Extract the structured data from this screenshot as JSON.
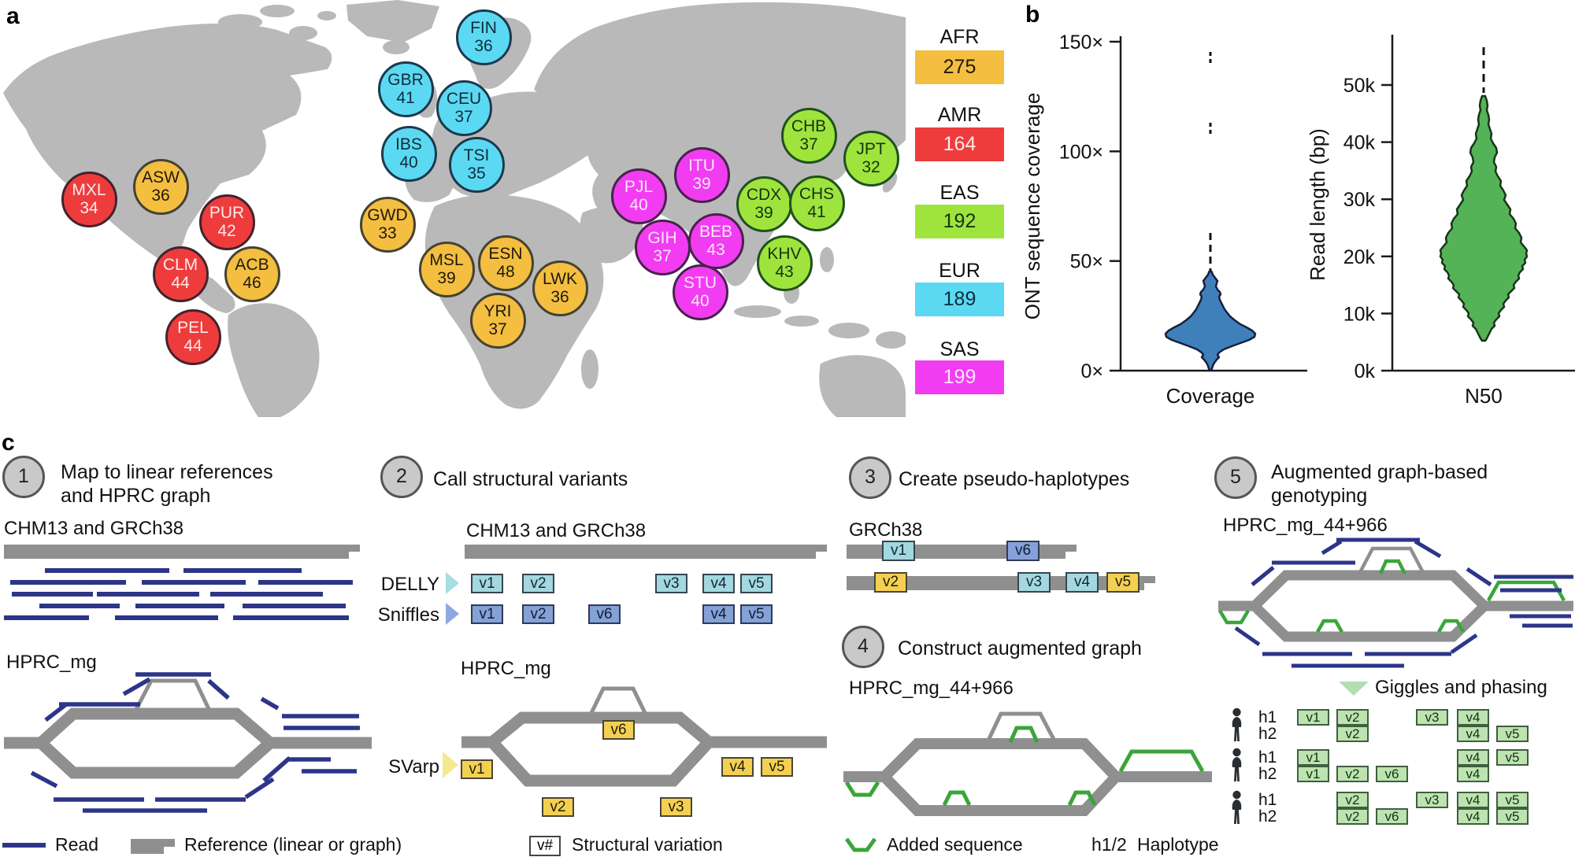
{
  "figure": {
    "panel_a": "a",
    "panel_b": "b",
    "panel_c": "c"
  },
  "map": {
    "land_color": "#b9b9b9",
    "groups": {
      "AFR": {
        "fill": "#f4be41",
        "border": "#454233",
        "text": "#1f1a0a"
      },
      "AMR": {
        "fill": "#ee3c3c",
        "border": "#42232e",
        "text": "#fdeaea"
      },
      "EAS": {
        "fill": "#9fe43d",
        "border": "#20501f",
        "text": "#153410"
      },
      "EUR": {
        "fill": "#5cd9f2",
        "border": "#1c394e",
        "text": "#0f2c3c"
      },
      "SAS": {
        "fill": "#f23cf2",
        "border": "#47224d",
        "text": "#fbe6fb"
      }
    },
    "populations": [
      {
        "code": "MXL",
        "count": 34,
        "group": "AMR"
      },
      {
        "code": "ASW",
        "count": 36,
        "group": "AFR"
      },
      {
        "code": "PUR",
        "count": 42,
        "group": "AMR"
      },
      {
        "code": "CLM",
        "count": 44,
        "group": "AMR"
      },
      {
        "code": "ACB",
        "count": 46,
        "group": "AFR"
      },
      {
        "code": "PEL",
        "count": 44,
        "group": "AMR"
      },
      {
        "code": "FIN",
        "count": 36,
        "group": "EUR"
      },
      {
        "code": "GBR",
        "count": 41,
        "group": "EUR"
      },
      {
        "code": "CEU",
        "count": 37,
        "group": "EUR"
      },
      {
        "code": "IBS",
        "count": 40,
        "group": "EUR"
      },
      {
        "code": "TSI",
        "count": 35,
        "group": "EUR"
      },
      {
        "code": "GWD",
        "count": 33,
        "group": "AFR"
      },
      {
        "code": "MSL",
        "count": 39,
        "group": "AFR"
      },
      {
        "code": "ESN",
        "count": 48,
        "group": "AFR"
      },
      {
        "code": "LWK",
        "count": 36,
        "group": "AFR"
      },
      {
        "code": "YRI",
        "count": 37,
        "group": "AFR"
      },
      {
        "code": "PJL",
        "count": 40,
        "group": "SAS"
      },
      {
        "code": "ITU",
        "count": 39,
        "group": "SAS"
      },
      {
        "code": "GIH",
        "count": 37,
        "group": "SAS"
      },
      {
        "code": "BEB",
        "count": 43,
        "group": "SAS"
      },
      {
        "code": "STU",
        "count": 40,
        "group": "SAS"
      },
      {
        "code": "CDX",
        "count": 39,
        "group": "EAS"
      },
      {
        "code": "CHS",
        "count": 41,
        "group": "EAS"
      },
      {
        "code": "CHB",
        "count": 37,
        "group": "EAS"
      },
      {
        "code": "JPT",
        "count": 32,
        "group": "EAS"
      },
      {
        "code": "KHV",
        "count": 43,
        "group": "EAS"
      }
    ],
    "legend": [
      {
        "group": "AFR",
        "count": "275"
      },
      {
        "group": "AMR",
        "count": "164"
      },
      {
        "group": "EAS",
        "count": "192"
      },
      {
        "group": "EUR",
        "count": "189"
      },
      {
        "group": "SAS",
        "count": "199"
      }
    ]
  },
  "chart_data": [
    {
      "type": "violin",
      "panel": "b-left",
      "xlabel": "Coverage",
      "ylabel": "ONT sequence coverage",
      "ylim": [
        0,
        155
      ],
      "grid": false,
      "fill_color": "#3f7fba",
      "stroke_color": "#15203c",
      "yticks": [
        {
          "value": 0,
          "label": "0×"
        },
        {
          "value": 50,
          "label": "50×"
        },
        {
          "value": 100,
          "label": "100×"
        },
        {
          "value": 150,
          "label": "150×"
        }
      ],
      "summary": {
        "widest_at_x": 16,
        "solid_range_x": [
          3,
          42
        ],
        "dashed_tail_x": [
          42,
          63
        ],
        "outliers_x": [
          111,
          143
        ]
      }
    },
    {
      "type": "violin",
      "panel": "b-right",
      "xlabel": "N50",
      "ylabel": "Read length (bp)",
      "ylim": [
        0,
        55000
      ],
      "grid": false,
      "fill_color": "#55b357",
      "stroke_color": "#173517",
      "yticks": [
        {
          "value": 0,
          "label": "0k"
        },
        {
          "value": 10000,
          "label": "10k"
        },
        {
          "value": 20000,
          "label": "20k"
        },
        {
          "value": 30000,
          "label": "30k"
        },
        {
          "value": 40000,
          "label": "40k"
        },
        {
          "value": 50000,
          "label": "50k"
        }
      ],
      "summary": {
        "widest_at_bp": 21000,
        "solid_range_bp": [
          5200,
          48000
        ],
        "dashed_tail_bp": [
          48000,
          54500
        ]
      }
    }
  ],
  "workflow": {
    "steps": [
      {
        "num": "1",
        "title": "Map to linear references and HPRC graph"
      },
      {
        "num": "2",
        "title": "Call structural variants"
      },
      {
        "num": "3",
        "title": "Create pseudo-haplotypes"
      },
      {
        "num": "4",
        "title": "Construct augmented graph"
      },
      {
        "num": "5",
        "title": "Augmented graph-based genotyping"
      }
    ],
    "labels": {
      "step1_ref": "CHM13 and GRCh38",
      "step1_graph": "HPRC_mg",
      "step2_ref": "CHM13 and GRCh38",
      "step2_graph": "HPRC_mg",
      "step3_ref": "GRCh38",
      "step4_graph": "HPRC_mg_44+966",
      "step5_graph": "HPRC_mg_44+966",
      "delly": "DELLY",
      "sniffles": "Sniffles",
      "svarp": "SVarp",
      "giggles": "Giggles and phasing"
    },
    "callers": {
      "delly_variants": [
        "v1",
        "v2",
        "v3",
        "v4",
        "v5"
      ],
      "sniffles_variants": [
        "v1",
        "v2",
        "v6",
        "v4",
        "v5"
      ],
      "svarp_variants": [
        "v1",
        "v2",
        "v3",
        "v4",
        "v5",
        "v6"
      ]
    },
    "pseudo_haplotypes": [
      {
        "variants": [
          {
            "label": "v1",
            "type": "cyan"
          },
          {
            "label": "v6",
            "type": "blue"
          }
        ]
      },
      {
        "variants": [
          {
            "label": "v2",
            "type": "yellow"
          },
          {
            "label": "v3",
            "type": "cyan"
          },
          {
            "label": "v4",
            "type": "cyan"
          },
          {
            "label": "v5",
            "type": "yellow"
          }
        ]
      }
    ],
    "genotypes": [
      {
        "h1": [
          "v1",
          "v2",
          "v3",
          "v4"
        ],
        "h2": [
          "v2",
          "v4",
          "v5"
        ]
      },
      {
        "h1": [
          "v1",
          "v4",
          "v5"
        ],
        "h2": [
          "v1",
          "v2",
          "v6",
          "v4"
        ]
      },
      {
        "h1": [
          "v2",
          "v3",
          "v4",
          "v5"
        ],
        "h2": [
          "v2",
          "v6",
          "v4",
          "v5"
        ]
      }
    ],
    "hap_row_labels": [
      "h1",
      "h2"
    ],
    "box_colors": {
      "yellow": {
        "fill": "#f4d052",
        "border": "#4a4636",
        "text": "#201c0a"
      },
      "cyan": {
        "fill": "#a3d8e0",
        "border": "#36454f",
        "text": "#122830"
      },
      "blue": {
        "fill": "#85a2d8",
        "border": "#2f3a55",
        "text": "#101c36"
      },
      "green": {
        "fill": "#bce3b0",
        "border": "#3f5f3f",
        "text": "#143014"
      }
    },
    "colors": {
      "read": "#2d3589",
      "reference": "#8f8f8f",
      "added_sequence": "#3ba53b",
      "delly_marker": "#a8dde2",
      "sniffles_marker": "#8fa9e0",
      "svarp_marker": "#f5e98f",
      "giggles_marker": "#b2deb2"
    },
    "legend": {
      "read": "Read",
      "reference": "Reference (linear or graph)",
      "sv_symbol": "v#",
      "sv": "Structural variation",
      "added": "Added sequence",
      "hap_symbol": "h1/2",
      "haplotype": "Haplotype"
    }
  }
}
